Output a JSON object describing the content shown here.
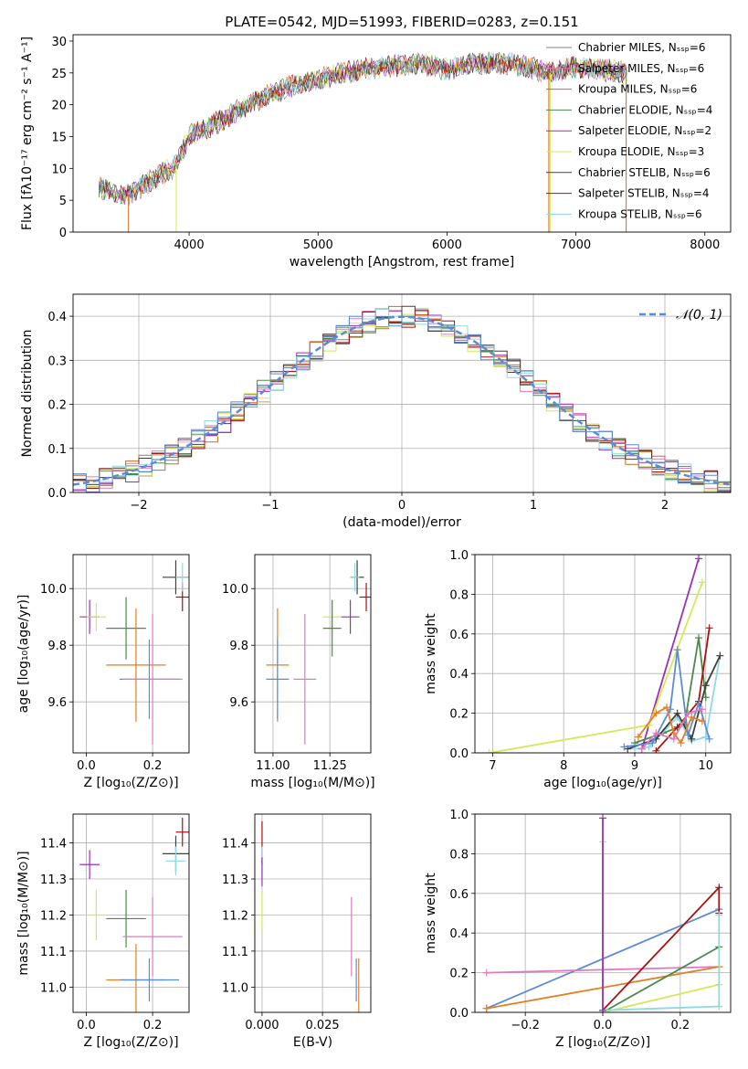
{
  "title": "PLATE=0542, MJD=51993, FIBERID=0283, z=0.151",
  "colors": {
    "Chabrier MILES": "#808080",
    "Salpeter MILES": "#e377c2",
    "Kroupa MILES": "#d2691e",
    "Chabrier ELODIE": "#4b8a4b",
    "Salpeter ELODIE": "#9b30b5",
    "Kroupa ELODIE": "#d4e857",
    "Chabrier STELIB": "#404040",
    "Salpeter STELIB": "#aa1111",
    "Kroupa STELIB": "#8fd9e0",
    "extra_blue": "#5b8bd6",
    "extra_orange": "#e67e22",
    "normal": "#5b8bd6"
  },
  "chart_data": [
    {
      "id": "spectrum",
      "type": "line",
      "xlabel": "wavelength [Angstrom, rest frame]",
      "ylabel": "Flux [fλ10⁻¹⁷ erg cm⁻² s⁻¹ A⁻¹]",
      "xlim": [
        3100,
        8200
      ],
      "ylim": [
        0,
        31
      ],
      "xticks": [
        4000,
        5000,
        6000,
        7000,
        8000
      ],
      "yticks": [
        0,
        5,
        10,
        15,
        20,
        25,
        30
      ],
      "spectrum_anchor_points": {
        "x": [
          3300,
          3500,
          3700,
          3900,
          4000,
          4200,
          4500,
          4800,
          5000,
          5200,
          5500,
          5800,
          6000,
          6200,
          6500,
          6800,
          7000,
          7200,
          7400
        ],
        "y": [
          7,
          5.5,
          8,
          10.5,
          15,
          17,
          20.5,
          23,
          24,
          25,
          26,
          26.5,
          25.5,
          26.5,
          26.5,
          25,
          26,
          25.5,
          25
        ]
      },
      "legend": [
        {
          "label": "Chabrier MILES, N_SSP=6",
          "color": "Chabrier MILES"
        },
        {
          "label": "Salpeter MILES, N_SSP=6",
          "color": "Salpeter MILES"
        },
        {
          "label": "Kroupa MILES, N_SSP=6",
          "color": "Kroupa MILES"
        },
        {
          "label": "Chabrier ELODIE, N_SSP=4",
          "color": "Chabrier ELODIE"
        },
        {
          "label": "Salpeter ELODIE, N_SSP=2",
          "color": "Salpeter ELODIE"
        },
        {
          "label": "Kroupa ELODIE, N_SSP=3",
          "color": "Kroupa ELODIE"
        },
        {
          "label": "Chabrier STELIB, N_SSP=6",
          "color": "Chabrier STELIB"
        },
        {
          "label": "Salpeter STELIB, N_SSP=4",
          "color": "Salpeter STELIB"
        },
        {
          "label": "Kroupa STELIB, N_SSP=6",
          "color": "Kroupa STELIB"
        }
      ],
      "legend_position": "right"
    },
    {
      "id": "residuals",
      "type": "bar",
      "xlabel": "(data-model)/error",
      "ylabel": "Normed distribution",
      "xlim": [
        -2.5,
        2.5
      ],
      "ylim": [
        0,
        0.45
      ],
      "xticks": [
        -2,
        -1,
        0,
        1,
        2
      ],
      "yticks": [
        0.0,
        0.1,
        0.2,
        0.3,
        0.4
      ],
      "bin_width": 0.1,
      "legend": [
        {
          "label": "𝒩(0, 1)",
          "color": "normal"
        }
      ],
      "legend_position": "top-right",
      "grid": true
    },
    {
      "id": "age_vs_Z",
      "type": "scatter",
      "xlabel": "Z [log₁₀(Z/Z⊙)]",
      "ylabel": "age  [log₁₀(age/yr)]",
      "xlim": [
        -0.04,
        0.31
      ],
      "ylim": [
        9.42,
        10.12
      ],
      "xticks": [
        0.0,
        0.2
      ],
      "yticks": [
        9.6,
        9.8,
        10.0
      ],
      "grid": true,
      "points": [
        {
          "color": "Salpeter ELODIE",
          "x": 0.01,
          "y": 9.9,
          "xerr": 0.03,
          "yerr": 0.06
        },
        {
          "color": "Kroupa ELODIE",
          "x": 0.03,
          "y": 9.9,
          "xerr": 0.03,
          "yerr": 0.05
        },
        {
          "color": "Chabrier ELODIE",
          "x": 0.12,
          "y": 9.86,
          "xerr": 0.06,
          "yerr": 0.11
        },
        {
          "color": "Chabrier STELIB",
          "x": 0.27,
          "y": 10.04,
          "xerr": 0.04,
          "yerr": 0.06
        },
        {
          "color": "Salpeter STELIB",
          "x": 0.29,
          "y": 9.97,
          "xerr": 0.02,
          "yerr": 0.05
        },
        {
          "color": "Kroupa STELIB",
          "x": 0.29,
          "y": 10.04,
          "xerr": 0.02,
          "yerr": 0.05
        },
        {
          "color": "extra_orange",
          "x": 0.15,
          "y": 9.73,
          "xerr": 0.09,
          "yerr": 0.2
        },
        {
          "color": "extra_blue",
          "x": 0.19,
          "y": 9.68,
          "xerr": 0.09,
          "yerr": 0.14
        },
        {
          "color": "Salpeter MILES",
          "x": 0.2,
          "y": 9.68,
          "xerr": 0.09,
          "yerr": 0.23
        }
      ]
    },
    {
      "id": "age_vs_mass",
      "type": "scatter",
      "xlabel": "mass [log₁₀(M/M⊙)]",
      "ylabel": "",
      "xlim": [
        10.92,
        11.43
      ],
      "ylim": [
        9.42,
        10.12
      ],
      "xticks": [
        11.0,
        11.25
      ],
      "yticks": [
        9.6,
        9.8,
        10.0
      ],
      "grid": true,
      "points": [
        {
          "color": "Kroupa ELODIE",
          "x": 11.26,
          "y": 9.9,
          "xerr": 0.04,
          "yerr": 0.06
        },
        {
          "color": "Chabrier ELODIE",
          "x": 11.26,
          "y": 9.86,
          "xerr": 0.04,
          "yerr": 0.1
        },
        {
          "color": "Salpeter ELODIE",
          "x": 11.34,
          "y": 9.9,
          "xerr": 0.04,
          "yerr": 0.06
        },
        {
          "color": "Chabrier STELIB",
          "x": 11.37,
          "y": 10.04,
          "xerr": 0.03,
          "yerr": 0.06
        },
        {
          "color": "Kroupa STELIB",
          "x": 11.36,
          "y": 10.04,
          "xerr": 0.02,
          "yerr": 0.05
        },
        {
          "color": "Salpeter STELIB",
          "x": 11.41,
          "y": 9.97,
          "xerr": 0.03,
          "yerr": 0.05
        },
        {
          "color": "extra_orange",
          "x": 11.02,
          "y": 9.73,
          "xerr": 0.05,
          "yerr": 0.2
        },
        {
          "color": "extra_blue",
          "x": 11.02,
          "y": 9.68,
          "xerr": 0.05,
          "yerr": 0.14
        },
        {
          "color": "Salpeter MILES",
          "x": 11.14,
          "y": 9.68,
          "xerr": 0.05,
          "yerr": 0.23
        }
      ]
    },
    {
      "id": "weight_vs_age",
      "type": "line",
      "xlabel": "age  [log₁₀(age/yr)]",
      "ylabel": "mass weight",
      "xlim": [
        6.75,
        10.35
      ],
      "ylim": [
        0,
        1
      ],
      "xticks": [
        7,
        8,
        9,
        10
      ],
      "yticks": [
        0.0,
        0.2,
        0.4,
        0.6,
        0.8,
        1.0
      ],
      "grid": true,
      "series": [
        {
          "color": "Salpeter ELODIE",
          "x": [
            9.1,
            9.9
          ],
          "y": [
            0.02,
            0.98
          ]
        },
        {
          "color": "Kroupa ELODIE",
          "x": [
            6.95,
            9.2,
            9.95
          ],
          "y": [
            0.0,
            0.14,
            0.86
          ]
        },
        {
          "color": "Chabrier ELODIE",
          "x": [
            9.0,
            9.4,
            9.7,
            9.9,
            10.0
          ],
          "y": [
            0.05,
            0.1,
            0.14,
            0.58,
            0.28
          ]
        },
        {
          "color": "Salpeter STELIB",
          "x": [
            9.3,
            9.6,
            9.9,
            10.05
          ],
          "y": [
            0.01,
            0.13,
            0.26,
            0.63
          ]
        },
        {
          "color": "Kroupa STELIB",
          "x": [
            9.0,
            9.2,
            9.6,
            9.8,
            10.0,
            10.2
          ],
          "y": [
            0.02,
            0.03,
            0.18,
            0.06,
            0.08,
            0.49
          ]
        },
        {
          "color": "Chabrier STELIB",
          "x": [
            8.9,
            9.3,
            9.6,
            9.8,
            10.0,
            10.2
          ],
          "y": [
            0.02,
            0.07,
            0.2,
            0.07,
            0.34,
            0.49
          ]
        },
        {
          "color": "extra_blue",
          "x": [
            8.85,
            9.25,
            9.5,
            9.6,
            9.75,
            9.9,
            10.05
          ],
          "y": [
            0.03,
            0.05,
            0.22,
            0.52,
            0.09,
            0.25,
            0.07
          ]
        },
        {
          "color": "extra_orange",
          "x": [
            9.05,
            9.3,
            9.45,
            9.55,
            9.65,
            9.8,
            9.95
          ],
          "y": [
            0.08,
            0.2,
            0.23,
            0.1,
            0.05,
            0.18,
            0.16
          ]
        },
        {
          "color": "Salpeter MILES",
          "x": [
            9.1,
            9.3,
            9.55,
            9.75,
            9.95
          ],
          "y": [
            0.02,
            0.1,
            0.07,
            0.2,
            0.22
          ]
        }
      ]
    },
    {
      "id": "mass_vs_Z",
      "type": "scatter",
      "xlabel": "Z [log₁₀(Z/Z⊙)]",
      "ylabel": "mass [log₁₀(M/M⊙)]",
      "xlim": [
        -0.04,
        0.31
      ],
      "ylim": [
        10.93,
        11.48
      ],
      "xticks": [
        0.0,
        0.2
      ],
      "yticks": [
        11.0,
        11.1,
        11.2,
        11.3,
        11.4
      ],
      "grid": true,
      "points": [
        {
          "color": "Salpeter ELODIE",
          "x": 0.01,
          "y": 11.34,
          "xerr": 0.03,
          "yerr": 0.04
        },
        {
          "color": "Kroupa ELODIE",
          "x": 0.03,
          "y": 11.2,
          "xerr": 0.03,
          "yerr": 0.07
        },
        {
          "color": "Chabrier ELODIE",
          "x": 0.12,
          "y": 11.19,
          "xerr": 0.06,
          "yerr": 0.08
        },
        {
          "color": "Chabrier STELIB",
          "x": 0.27,
          "y": 11.37,
          "xerr": 0.04,
          "yerr": 0.05
        },
        {
          "color": "Kroupa STELIB",
          "x": 0.27,
          "y": 11.35,
          "xerr": 0.03,
          "yerr": 0.04
        },
        {
          "color": "Salpeter STELIB",
          "x": 0.29,
          "y": 11.43,
          "xerr": 0.02,
          "yerr": 0.04
        },
        {
          "color": "Salpeter MILES",
          "x": 0.2,
          "y": 11.14,
          "xerr": 0.09,
          "yerr": 0.11
        },
        {
          "color": "extra_orange",
          "x": 0.15,
          "y": 11.02,
          "xerr": 0.09,
          "yerr": 0.1
        },
        {
          "color": "extra_blue",
          "x": 0.19,
          "y": 11.02,
          "xerr": 0.09,
          "yerr": 0.06
        }
      ]
    },
    {
      "id": "mass_vs_ebv",
      "type": "scatter",
      "xlabel": "E(B-V)",
      "ylabel": "",
      "xlim": [
        -0.003,
        0.045
      ],
      "ylim": [
        10.93,
        11.48
      ],
      "xticks": [
        0.0,
        0.025
      ],
      "yticks": [
        11.0,
        11.1,
        11.2,
        11.3,
        11.4
      ],
      "grid": true,
      "points": [
        {
          "color": "Salpeter STELIB",
          "x": 0.0,
          "y": 11.4,
          "xerr": 0,
          "yerr": 0.06
        },
        {
          "color": "Kroupa STELIB",
          "x": 0.0,
          "y": 11.35,
          "xerr": 0,
          "yerr": 0.04
        },
        {
          "color": "Salpeter ELODIE",
          "x": 0.0,
          "y": 11.32,
          "xerr": 0,
          "yerr": 0.04
        },
        {
          "color": "Kroupa ELODIE",
          "x": 0.0,
          "y": 11.21,
          "xerr": 0,
          "yerr": 0.05
        },
        {
          "color": "Salpeter MILES",
          "x": 0.037,
          "y": 11.14,
          "xerr": 0,
          "yerr": 0.11
        },
        {
          "color": "extra_blue",
          "x": 0.039,
          "y": 11.02,
          "xerr": 0,
          "yerr": 0.06
        },
        {
          "color": "extra_orange",
          "x": 0.04,
          "y": 11.0,
          "xerr": 0,
          "yerr": 0.08
        }
      ]
    },
    {
      "id": "weight_vs_Z",
      "type": "line",
      "xlabel": "Z [log₁₀(Z/Z⊙)]",
      "ylabel": "mass weight",
      "xlim": [
        -0.33,
        0.33
      ],
      "ylim": [
        0,
        1
      ],
      "xticks": [
        -0.2,
        0.0,
        0.2
      ],
      "yticks": [
        0.0,
        0.2,
        0.4,
        0.6,
        0.8,
        1.0
      ],
      "grid": true,
      "series": [
        {
          "color": "extra_blue",
          "x": [
            -0.3,
            0.3
          ],
          "y": [
            0.02,
            0.52
          ]
        },
        {
          "color": "Salpeter MILES",
          "x": [
            -0.3,
            0.3
          ],
          "y": [
            0.2,
            0.23
          ]
        },
        {
          "color": "extra_orange",
          "x": [
            -0.3,
            0.3
          ],
          "y": [
            0.02,
            0.23
          ]
        },
        {
          "color": "Salpeter STELIB",
          "x": [
            0.0,
            0.3,
            0.3
          ],
          "y": [
            0.01,
            0.63,
            0.5
          ]
        },
        {
          "color": "Chabrier ELODIE",
          "x": [
            0.0,
            0.3
          ],
          "y": [
            0.0,
            0.33
          ]
        },
        {
          "color": "Kroupa ELODIE",
          "x": [
            0.0,
            0.0,
            0.3
          ],
          "y": [
            0.86,
            0.0,
            0.14
          ]
        },
        {
          "color": "Kroupa STELIB",
          "x": [
            0.0,
            0.3,
            0.3
          ],
          "y": [
            0.01,
            0.03,
            0.49
          ]
        },
        {
          "color": "Salpeter ELODIE",
          "x": [
            0.0,
            0.0
          ],
          "y": [
            0.98,
            0.01
          ]
        }
      ]
    }
  ]
}
